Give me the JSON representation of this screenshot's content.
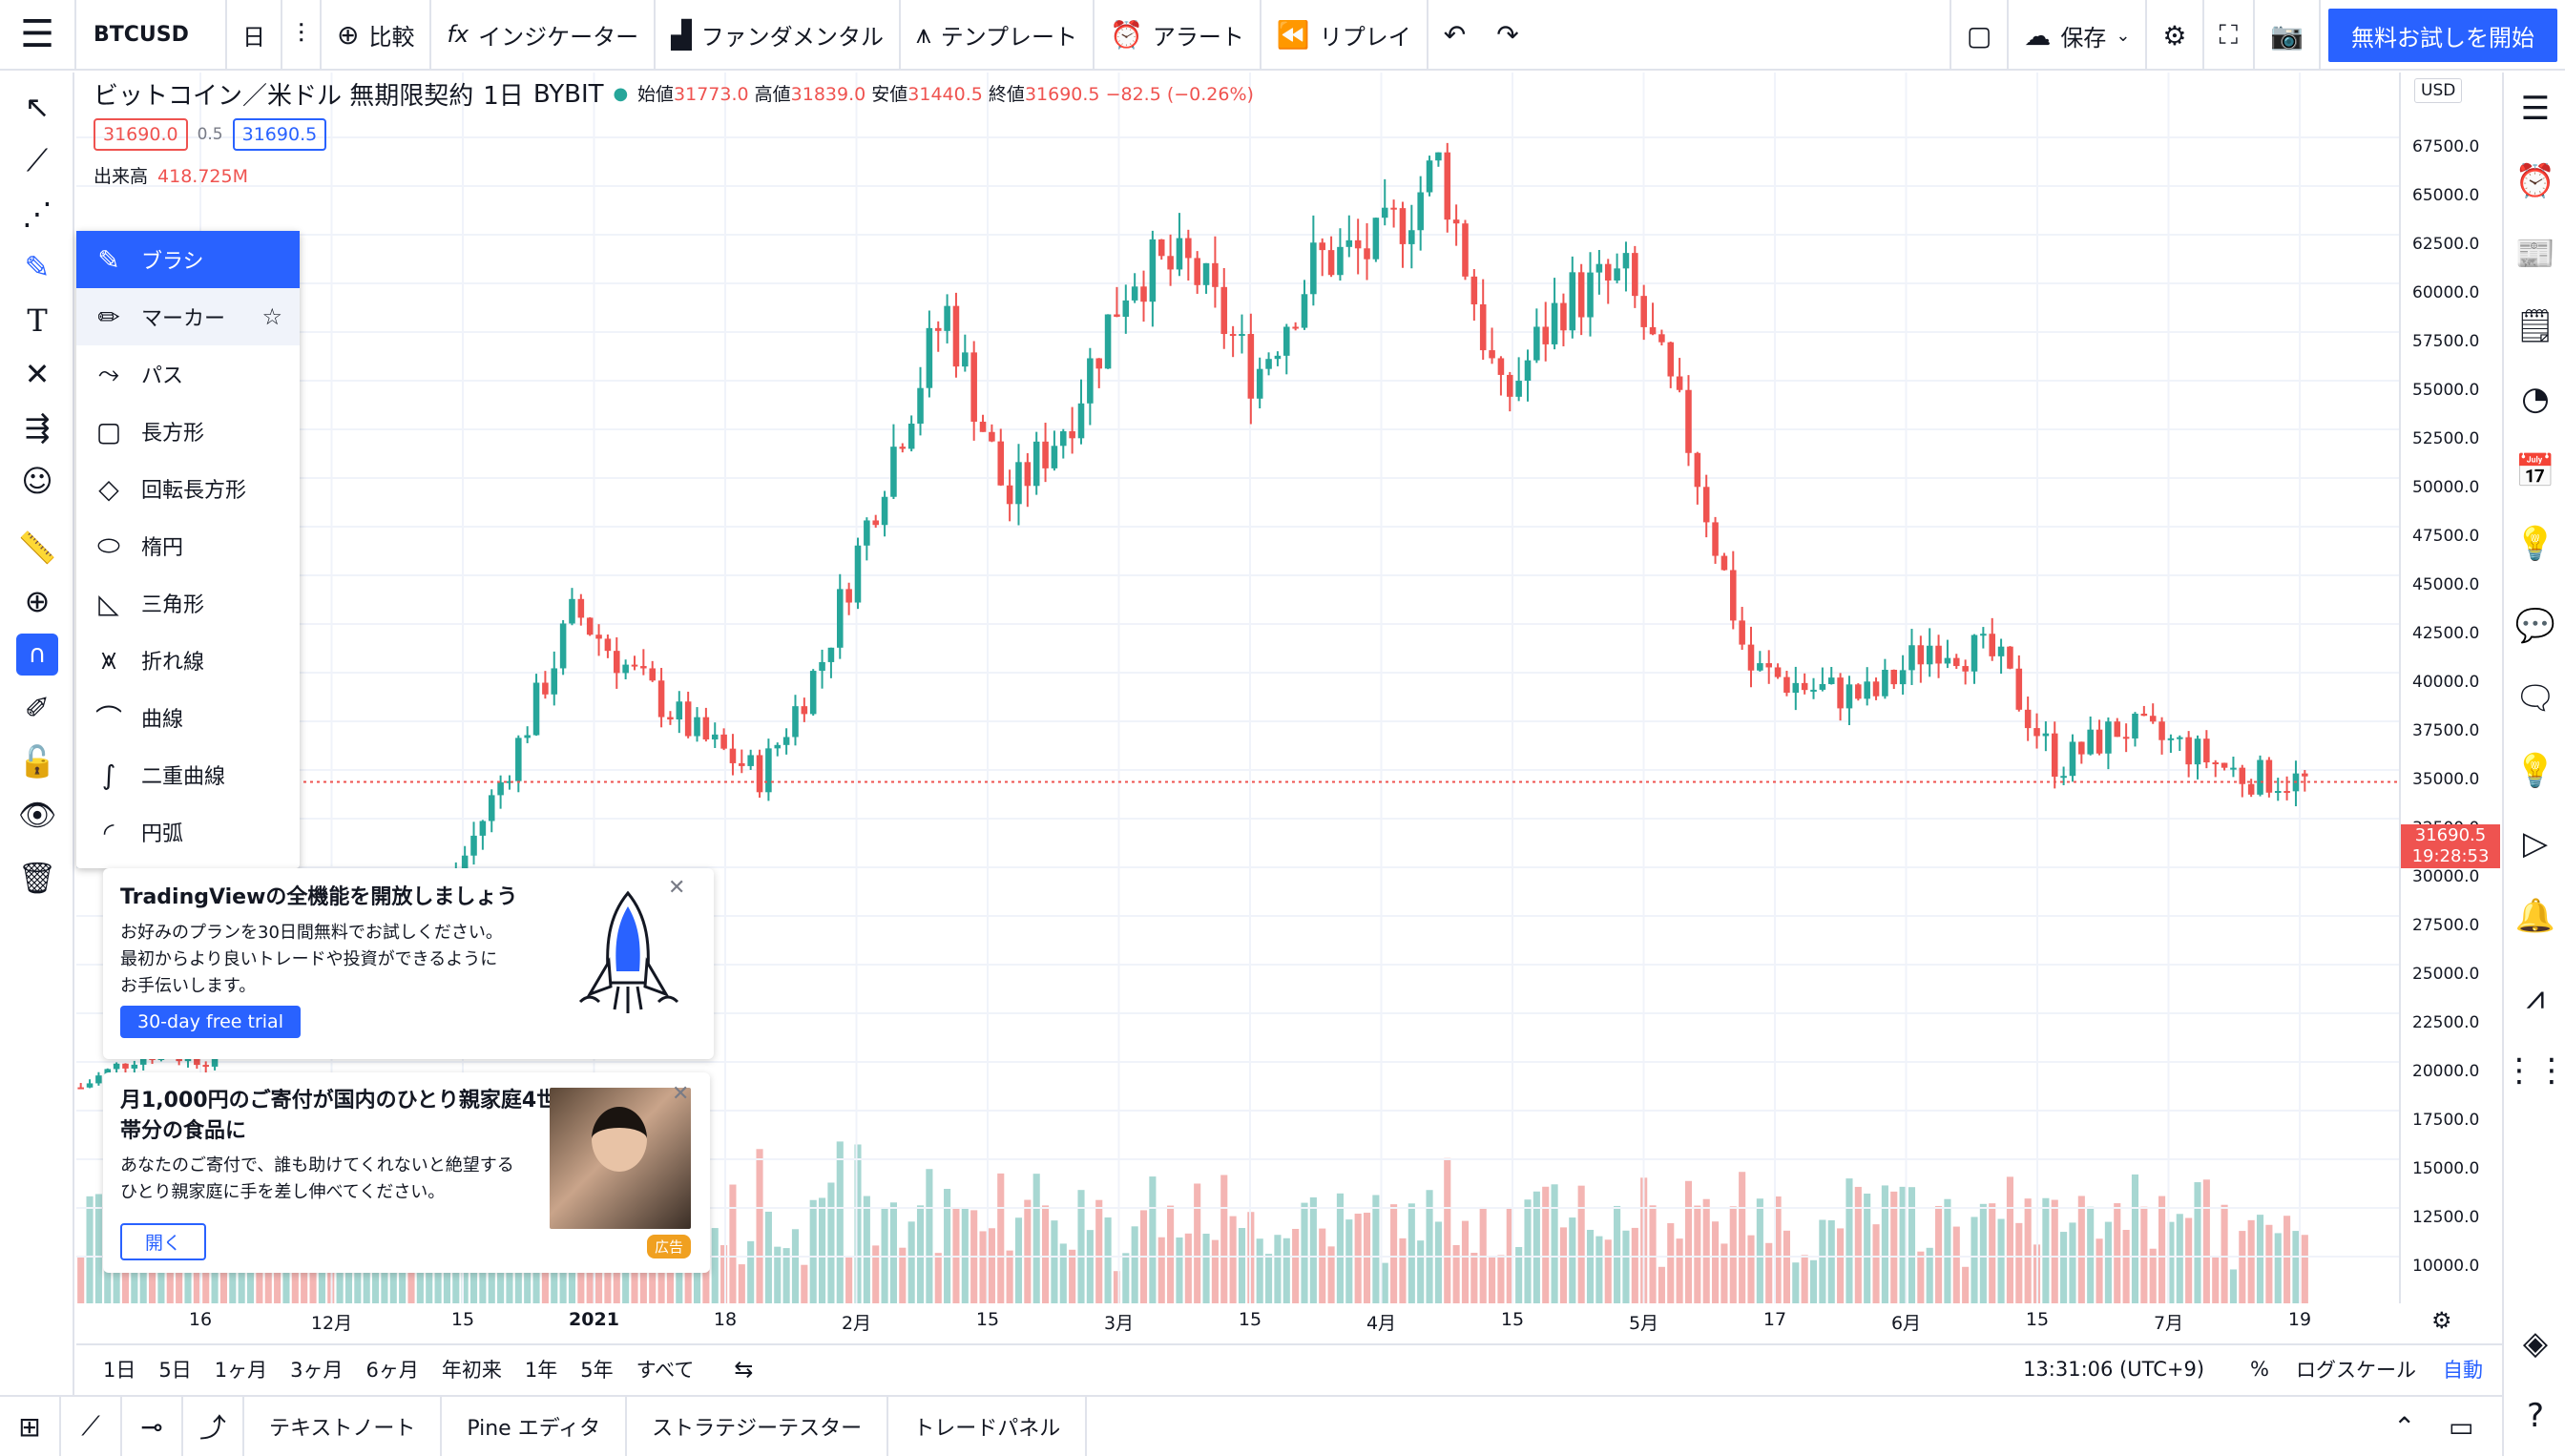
{
  "topbar": {
    "symbol": "BTCUSD",
    "interval": "日",
    "items": [
      {
        "label": "比較",
        "icon": "plus-circle-icon"
      },
      {
        "label": "インジケーター",
        "icon": "fx-icon"
      },
      {
        "label": "ファンダメンタル",
        "icon": "bars-icon"
      },
      {
        "label": "テンプレート",
        "icon": "template-icon"
      },
      {
        "label": "アラート",
        "icon": "alarm-icon"
      },
      {
        "label": "リプレイ",
        "icon": "rewind-icon"
      }
    ],
    "save_label": "保存",
    "trial_label": "無料お試しを開始"
  },
  "legend": {
    "title": "ビットコイン／米ドル 無期限契約",
    "interval": "1日",
    "exchange": "BYBIT",
    "open_label": "始値",
    "open": "31773.0",
    "high_label": "高値",
    "high": "31839.0",
    "low_label": "安値",
    "low": "31440.5",
    "close_label": "終値",
    "close": "31690.5",
    "change": "−82.5 (−0.26%)",
    "sell_price": "31690.0",
    "spread": "0.5",
    "buy_price": "31690.5",
    "volume_label": "出来高",
    "volume_value": "418.725M"
  },
  "drawing_menu": {
    "items": [
      {
        "label": "ブラシ",
        "icon": "brush-icon",
        "state": "selected"
      },
      {
        "label": "マーカー",
        "icon": "marker-icon",
        "state": "hover"
      },
      {
        "label": "パス",
        "icon": "path-icon"
      },
      {
        "label": "長方形",
        "icon": "rectangle-icon"
      },
      {
        "label": "回転長方形",
        "icon": "rotated-rectangle-icon"
      },
      {
        "label": "楕円",
        "icon": "ellipse-icon"
      },
      {
        "label": "三角形",
        "icon": "triangle-icon"
      },
      {
        "label": "折れ線",
        "icon": "polyline-icon"
      },
      {
        "label": "曲線",
        "icon": "curve-icon"
      },
      {
        "label": "二重曲線",
        "icon": "double-curve-icon"
      },
      {
        "label": "円弧",
        "icon": "arc-icon"
      }
    ]
  },
  "promo": {
    "title": "TradingViewの全機能を開放しましょう",
    "line1": "お好みのプランを30日間無料でお試しください。",
    "line2": "最初からより良いトレードや投資ができるように",
    "line3": "お手伝いします。",
    "cta": "30-day free trial"
  },
  "ad": {
    "title": "月1,000円のご寄付が国内のひとり親家庭4世帯分の食品に",
    "line1": "あなたのご寄付で、誰も助けてくれないと絶望する",
    "line2": "ひとり親家庭に手を差し伸べてください。",
    "open_label": "開く",
    "badge": "広告"
  },
  "price_axis": {
    "currency": "USD",
    "labels": [
      "67500.0",
      "65000.0",
      "62500.0",
      "60000.0",
      "57500.0",
      "55000.0",
      "52500.0",
      "50000.0",
      "47500.0",
      "45000.0",
      "42500.0",
      "40000.0",
      "37500.0",
      "35000.0",
      "32500.0",
      "30000.0",
      "27500.0",
      "25000.0",
      "22500.0",
      "20000.0",
      "17500.0",
      "15000.0",
      "12500.0",
      "10000.0"
    ],
    "current_price": "31690.5",
    "countdown": "19:28:53"
  },
  "time_axis": {
    "labels": [
      "16",
      "12月",
      "15",
      "2021",
      "18",
      "2月",
      "15",
      "3月",
      "15",
      "4月",
      "15",
      "5月",
      "17",
      "6月",
      "15",
      "7月",
      "19"
    ]
  },
  "range_bar": {
    "ranges": [
      "1日",
      "5日",
      "1ヶ月",
      "3ヶ月",
      "6ヶ月",
      "年初来",
      "1年",
      "5年",
      "すべて"
    ],
    "clock": "13:31:06 (UTC+9)",
    "percent": "%",
    "log": "ログスケール",
    "auto": "自動"
  },
  "bottom_bar": {
    "tabs": [
      "テキストノート",
      "Pine エディタ",
      "ストラテジーテスター",
      "トレードパネル"
    ]
  },
  "colors": {
    "up": "#26a69a",
    "down": "#ef5350",
    "accent": "#2962ff",
    "up_volume": "#a7d7d2",
    "down_volume": "#f4b5b3"
  },
  "chart_data": {
    "type": "candlestick",
    "x": [
      "2020-11-09",
      "2020-11-16",
      "2020-11-23",
      "2020-11-30",
      "2020-12-07",
      "2020-12-14",
      "2020-12-21",
      "2020-12-28",
      "2021-01-04",
      "2021-01-11",
      "2021-01-18",
      "2021-01-25",
      "2021-02-01",
      "2021-02-08",
      "2021-02-15",
      "2021-02-22",
      "2021-03-01",
      "2021-03-08",
      "2021-03-15",
      "2021-03-22",
      "2021-03-29",
      "2021-04-05",
      "2021-04-12",
      "2021-04-19",
      "2021-04-26",
      "2021-05-03",
      "2021-05-10",
      "2021-05-17",
      "2021-05-24",
      "2021-05-31",
      "2021-06-07",
      "2021-06-14",
      "2021-06-21",
      "2021-06-28",
      "2021-07-05",
      "2021-07-12",
      "2021-07-19"
    ],
    "close": [
      16000,
      17800,
      17500,
      19100,
      18500,
      23500,
      26500,
      33000,
      40500,
      37000,
      34000,
      32000,
      38000,
      47500,
      56000,
      46000,
      50500,
      58000,
      58000,
      52500,
      58500,
      59000,
      63500,
      51000,
      56500,
      57500,
      49500,
      37500,
      36500,
      36000,
      39000,
      38000,
      32500,
      34500,
      33500,
      32000,
      31690
    ],
    "ylim": [
      10000,
      67500
    ],
    "volume_note": "volume bars in lower pane"
  }
}
